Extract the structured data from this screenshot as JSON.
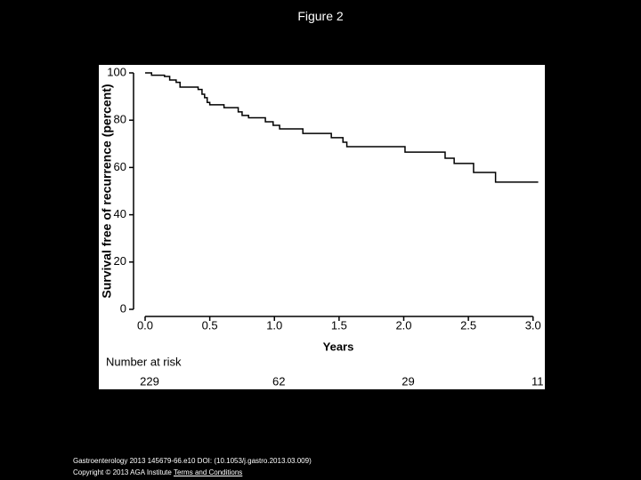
{
  "page_title": "Figure 2",
  "chart_data": {
    "type": "step",
    "y_label": "Survival free of recurrence (percent)",
    "x_label": "Years",
    "x": [
      0,
      0.05,
      0.15,
      0.19,
      0.24,
      0.27,
      0.41,
      0.44,
      0.46,
      0.48,
      0.5,
      0.61,
      0.72,
      0.75,
      0.8,
      0.93,
      0.99,
      1.04,
      1.22,
      1.44,
      1.53,
      1.56,
      2.01,
      2.32,
      2.39,
      2.54,
      2.71,
      3.04
    ],
    "values": [
      100,
      99,
      98.5,
      97,
      96,
      94,
      93,
      91,
      89.5,
      87.5,
      86.5,
      85.3,
      83.5,
      82,
      81,
      79.3,
      77.8,
      76.3,
      74.4,
      72.6,
      70.7,
      68.8,
      66.5,
      63.9,
      61.7,
      57.9,
      53.8,
      53.8
    ],
    "color": "#000000",
    "xlim": [
      0,
      3.05
    ],
    "ylim": [
      0,
      100
    ],
    "xticks": [
      {
        "value": 0,
        "label": "0.0"
      },
      0.5,
      {
        "value": 1,
        "label": "1.0"
      },
      1.5,
      {
        "value": 2,
        "label": "2.0"
      },
      2.5,
      {
        "value": 3,
        "label": "3.0"
      }
    ],
    "yticks": [
      0,
      20,
      40,
      60,
      80,
      100
    ],
    "risk_title": "Number at risk",
    "risk": [
      229,
      62,
      29,
      11
    ]
  },
  "footer": {
    "citation": "Gastroenterology 2013 145679-66.e10 DOI: (10.1053/j.gastro.2013.03.009)",
    "copyright": "Copyright © 2013 AGA Institute",
    "link": "Terms and Conditions"
  }
}
